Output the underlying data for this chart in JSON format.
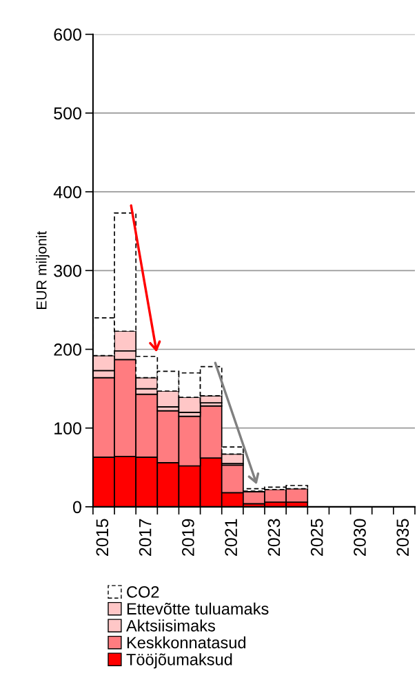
{
  "chart_data": {
    "type": "bar",
    "stacked": true,
    "ylabel": "EUR miljonit",
    "categories": [
      "2015",
      null,
      "2017",
      null,
      "2019",
      null,
      "2021",
      null,
      "2023",
      null,
      "2025",
      null,
      "2030",
      null,
      "2035"
    ],
    "series": [
      {
        "name": "Tööjõumaksud",
        "color": "#ff0000",
        "values": [
          63,
          64,
          63,
          56,
          52,
          62,
          18,
          4,
          6,
          6,
          null,
          null,
          null,
          null,
          null
        ]
      },
      {
        "name": "Keskkonnatasud",
        "color": "#ff7c80",
        "values": [
          101,
          123,
          80,
          66,
          63,
          66,
          35,
          15,
          16,
          17,
          null,
          null,
          null,
          null,
          null
        ]
      },
      {
        "name": "Aktsiisimaks",
        "color": "#ffc7c7",
        "values": [
          9,
          11,
          7,
          5,
          5,
          4,
          2,
          0,
          0,
          0,
          null,
          null,
          null,
          null,
          null
        ]
      },
      {
        "name": "Ettevõtte tuluamaks",
        "color": "#ffc7c7",
        "values": [
          19,
          25,
          14,
          20,
          19,
          9,
          12,
          1,
          0,
          0,
          null,
          null,
          null,
          null,
          null
        ]
      },
      {
        "name": "CO2",
        "color": "#ffffff",
        "line_style": "dashed",
        "values": [
          48,
          150,
          27,
          25,
          31,
          37,
          9,
          3,
          3,
          4,
          null,
          null,
          null,
          null,
          null
        ]
      }
    ],
    "ylim": [
      0,
      600
    ],
    "yticks": [
      0,
      100,
      200,
      300,
      400,
      500,
      600
    ],
    "grid": "y",
    "legend": "bottom"
  }
}
